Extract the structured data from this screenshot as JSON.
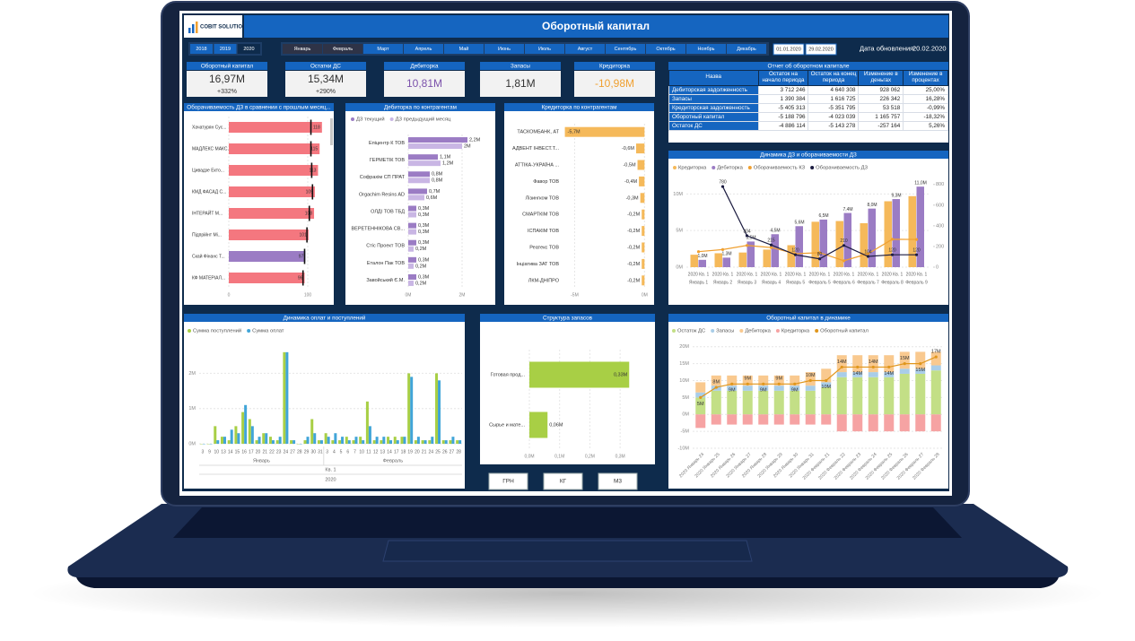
{
  "header": {
    "logo": "COBIT SOLUTIONS",
    "title": "Оборотный капитал"
  },
  "filters": {
    "years": [
      "2018",
      "2019",
      "2020"
    ],
    "months": [
      "Январь",
      "Февраль",
      "Март",
      "Апрель",
      "Май",
      "Июнь",
      "Июль",
      "Август",
      "Сентябрь",
      "Октябрь",
      "Ноябрь",
      "Декабрь"
    ],
    "selected": [
      "2020",
      "Январь",
      "Февраль"
    ],
    "dates": [
      "01.01.2020",
      "29.02.2020"
    ],
    "update_label": "Дата обновления:",
    "update_date": "20.02.2020"
  },
  "kpis": [
    {
      "label": "Оборотный капитал",
      "value": "16,97M",
      "delta": "+332%",
      "color": "#333333"
    },
    {
      "label": "Остатки ДС",
      "value": "15,34M",
      "delta": "+290%",
      "color": "#333333"
    },
    {
      "label": "Дебиторка",
      "value": "10,81M",
      "color": "#7b52ab"
    },
    {
      "label": "Запасы",
      "value": "1,81M",
      "color": "#333333"
    },
    {
      "label": "Кредиторка",
      "value": "-10,98M",
      "color": "#f0a030"
    }
  ],
  "report": {
    "title": "Отчет об оборотном капитале",
    "columns": [
      "Назва",
      "Остаток на начало периода",
      "Остаток на конец периода",
      "Изменение в деньгах",
      "Изменение в процентах"
    ],
    "rows": [
      [
        "Дебиторская задолженность",
        "3 712 246",
        "4 640 308",
        "928 062",
        "25,00%"
      ],
      [
        "Запасы",
        "1 390 384",
        "1 616 725",
        "226 342",
        "16,28%"
      ],
      [
        "Кредиторская задолженность",
        "-5 405 313",
        "-5 351 795",
        "53 518",
        "-0,99%"
      ],
      [
        "Оборотный капитал",
        "-5 188 796",
        "-4 023 039",
        "1 165 757",
        "-18,32%"
      ],
      [
        "Остаток ДС",
        "-4 886 114",
        "-5 143 278",
        "-257 164",
        "5,26%"
      ]
    ]
  },
  "charts": {
    "turnover": {
      "type": "hbar",
      "title": "Оборачиваемость ДЗ в сравнении с прошлым месяц...",
      "categories": [
        "Хачатурян Сус...",
        "МАДЛЕКС МАКС...",
        "Цивадзе Екто...",
        "КМД ФАСАД С...",
        "ІНТЕРАЙТ М...",
        "Підпрійнт Мі...",
        "Скай Фінанс Т...",
        "КФ МАТЕРІАЛ..."
      ],
      "values": [
        118,
        115,
        113,
        109,
        108,
        101,
        97,
        96
      ],
      "previous": [
        104,
        104,
        105,
        106,
        102,
        99,
        96,
        94
      ],
      "colors": [
        "#f4777f",
        "#f4777f",
        "#f4777f",
        "#f4777f",
        "#f4777f",
        "#f4777f",
        "#9b7cc4",
        "#f4777f"
      ],
      "xlim": [
        0,
        125
      ],
      "xticks": [
        0,
        100
      ]
    },
    "debitorka": {
      "type": "hbar",
      "title": "Дебиторка по контрагентам",
      "categories": [
        "Епіцентр К ТОВ",
        "ГЕРМЕТІК ТОВ",
        "Софрахім СП ПРАТ",
        "Orgachim Resins AD",
        "ОЛДІ ТОВ ТБД",
        "ВЕРЕТЕННІКОВА СВ...",
        "Стіс Проект ТОВ",
        "Еталон Пак ТОВ",
        "Завойський Є.М."
      ],
      "series": [
        {
          "name": "ДЗ текущий",
          "color": "#9b7cc4",
          "values": [
            2.2,
            1.1,
            0.8,
            0.7,
            0.3,
            0.3,
            0.3,
            0.3,
            0.3
          ],
          "value_labels": [
            "2,2M",
            "1,1M",
            "0,8M",
            "0,7M",
            "0,3M",
            "0,3M",
            "0,3M",
            "0,3M",
            "0,3M"
          ]
        },
        {
          "name": "ДЗ предыдущий месяц",
          "color": "#c9b6e4",
          "values": [
            2.0,
            1.2,
            0.8,
            0.6,
            0.3,
            0.3,
            0.2,
            0.2,
            0.2
          ],
          "value_labels": [
            "2M",
            "1,2M",
            "0,8M",
            "0,6M",
            "0,3M",
            "0,3M",
            "0,2M",
            "0,2M",
            "0,2M"
          ]
        }
      ],
      "xlim": [
        0,
        2.4
      ],
      "xticks": [
        {
          "value": 0,
          "label": "0M"
        },
        {
          "value": 2,
          "label": "2M"
        }
      ]
    },
    "kreditorka": {
      "type": "hbar",
      "title": "Кредиторка по контрагентам",
      "categories": [
        "ТАСКОМБАНК, АТ",
        "АДВЕНТ ІНВЕСТ.Т...",
        "АТТІКА-УКРАЇНА ...",
        "Фавор ТОВ",
        "Лізингком ТОВ",
        "СМАРТКІМ ТОВ",
        "ІСПАКІМ ТОВ",
        "Реатекс ТОВ",
        "Інціатива ЗАТ ТОВ",
        "ЛКМ-ДНІПРО"
      ],
      "values": [
        -5.7,
        -0.6,
        -0.5,
        -0.4,
        -0.3,
        -0.2,
        -0.2,
        -0.2,
        -0.2,
        -0.2
      ],
      "value_labels": [
        "-5,7M",
        "-0,6M",
        "-0,5M",
        "-0,4M",
        "-0,3M",
        "-0,2M",
        "-0,2M",
        "-0,2M",
        "-0,2M",
        "-0,2M"
      ],
      "color": "#f5b95a",
      "xlim": [
        -5.8,
        0.3
      ],
      "xticks": [
        {
          "value": -5,
          "label": "-5M"
        },
        {
          "value": 0,
          "label": "0M"
        }
      ]
    },
    "dz_dynamics": {
      "type": "combo",
      "title": "Динамика ДЗ и оборачиваемости ДЗ",
      "period": "2020 Кв. 1",
      "categories": [
        "Январь 1",
        "Январь 2",
        "Январь 3",
        "Январь 4",
        "Январь 5",
        "Февраль 5",
        "Февраль 6",
        "Февраль 7",
        "Февраль 8",
        "Февраль 9"
      ],
      "series": [
        {
          "name": "Кредиторка",
          "kind": "bar",
          "color": "#f5b95a",
          "values": [
            1.7,
            1.9,
            2.0,
            2.4,
            3.0,
            6.2,
            6.3,
            6.0,
            9.0,
            9.7
          ]
        },
        {
          "name": "Дебиторка",
          "kind": "bar",
          "color": "#9b7cc4",
          "values": [
            1.0,
            1.3,
            3.5,
            4.5,
            5.6,
            6.5,
            7.4,
            8.0,
            9.3,
            11.0
          ],
          "value_labels": [
            "1,0M",
            "1,3M",
            "3,5M",
            "4,5M",
            "5,6M",
            "6,5M",
            "7,4M",
            "8,0M",
            "9,3M",
            "11,0M"
          ]
        },
        {
          "name": "Оборачиваемость КЗ",
          "kind": "line",
          "axis": "y2",
          "color": "#f0a030",
          "values": [
            150,
            170,
            210,
            190,
            130,
            140,
            62,
            130,
            270,
            268
          ]
        },
        {
          "name": "Оборачиваемость ДЗ",
          "kind": "line",
          "axis": "y2",
          "color": "#1c1c40",
          "values": [
            null,
            780,
            304,
            215,
            120,
            80,
            210,
            104,
            120,
            120
          ],
          "print_values": true
        }
      ],
      "ylim": [
        0,
        12
      ],
      "yticks": [
        {
          "value": 0,
          "label": "0M"
        },
        {
          "value": 5,
          "label": "5M"
        },
        {
          "value": 10,
          "label": "10M"
        }
      ],
      "y2lim": [
        0,
        850
      ],
      "y2ticks": [
        0,
        200,
        400,
        600,
        800
      ]
    },
    "payments": {
      "type": "grouped_bar",
      "title": "Динамика оплат и поступлений",
      "categories": [
        "3",
        "9",
        "10",
        "13",
        "14",
        "15",
        "16",
        "17",
        "20",
        "21",
        "22",
        "23",
        "24",
        "27",
        "28",
        "29",
        "30",
        "31",
        "3",
        "4",
        "5",
        "6",
        "7",
        "10",
        "11",
        "12",
        "13",
        "14",
        "17",
        "18",
        "19",
        "20",
        "21",
        "24",
        "25",
        "26",
        "27",
        "28"
      ],
      "months": [
        "Январь",
        "Январь",
        "Январь",
        "Январь",
        "Январь",
        "Январь",
        "Январь",
        "Январь",
        "Январь",
        "Январь",
        "Январь",
        "Январь",
        "Январь",
        "Январь",
        "Январь",
        "Январь",
        "Январь",
        "Январь",
        "Февраль",
        "Февраль",
        "Февраль",
        "Февраль",
        "Февраль",
        "Февраль",
        "Февраль",
        "Февраль",
        "Февраль",
        "Февраль",
        "Февраль",
        "Февраль",
        "Февраль",
        "Февраль",
        "Февраль",
        "Февраль",
        "Февраль",
        "Февраль",
        "Февраль",
        "Февраль"
      ],
      "quarter": "Кв. 1",
      "year": "2020",
      "series": [
        {
          "name": "Сумма поступлений",
          "color": "#a8cf45",
          "values": [
            0.0,
            0.0,
            0.5,
            0.2,
            0.1,
            0.5,
            0.9,
            0.7,
            0.1,
            0.3,
            0.2,
            0.1,
            2.6,
            0.1,
            0.0,
            0.1,
            0.7,
            0.1,
            0.3,
            0.1,
            0.1,
            0.2,
            0.1,
            0.2,
            1.2,
            0.1,
            0.1,
            0.2,
            0.2,
            0.2,
            2.0,
            0.1,
            0.1,
            0.1,
            2.0,
            0.1,
            0.1,
            0.1
          ]
        },
        {
          "name": "Сумма оплат",
          "color": "#41a5d8",
          "values": [
            0.0,
            0.0,
            0.1,
            0.2,
            0.4,
            0.3,
            1.1,
            0.5,
            0.2,
            0.3,
            0.1,
            0.2,
            2.6,
            0.1,
            0.0,
            0.2,
            0.3,
            0.1,
            0.2,
            0.3,
            0.2,
            0.1,
            0.2,
            0.1,
            0.5,
            0.2,
            0.2,
            0.1,
            0.1,
            0.2,
            1.9,
            0.2,
            0.1,
            0.2,
            1.8,
            0.1,
            0.2,
            0.1
          ]
        }
      ],
      "ylim": [
        0,
        2.8
      ],
      "yticks": [
        {
          "value": 0,
          "label": "0M"
        },
        {
          "value": 1,
          "label": "1M"
        },
        {
          "value": 2,
          "label": "2M"
        }
      ]
    },
    "stock": {
      "type": "hbar",
      "title": "Структура запасов",
      "categories": [
        "Готовая прод...",
        "Сырье и мате..."
      ],
      "values": [
        0.33,
        0.06
      ],
      "value_labels": [
        "0,33M",
        "0,06M"
      ],
      "color": "#a8cf45",
      "xlim": [
        0,
        0.35
      ],
      "xticks": [
        {
          "value": 0,
          "label": "0,0M"
        },
        {
          "value": 0.1,
          "label": "0,1M"
        },
        {
          "value": 0.2,
          "label": "0,2M"
        },
        {
          "value": 0.3,
          "label": "0,3M"
        }
      ],
      "buttons": [
        "ГРН",
        "КГ",
        "М3"
      ]
    },
    "capital": {
      "type": "stacked_bar",
      "title": "Оборотный капитал в динамике",
      "categories": [
        "2020 Январь 24",
        "2020 Январь 25",
        "2020 Январь 26",
        "2020 Январь 27",
        "2020 Январь 28",
        "2020 Январь 29",
        "2020 Январь 30",
        "2020 Январь 31",
        "2020 Февраль 21",
        "2020 Февраль 22",
        "2020 Февраль 23",
        "2020 Февраль 24",
        "2020 Февраль 25",
        "2020 Февраль 26",
        "2020 Февраль 27",
        "2020 Февраль 28"
      ],
      "series": [
        {
          "name": "Остаток ДС",
          "kind": "bar",
          "color": "#c3df86",
          "values": [
            5,
            7,
            7,
            7,
            7,
            7,
            7,
            7,
            8,
            11,
            11,
            11,
            11,
            12,
            12,
            13
          ]
        },
        {
          "name": "Запасы",
          "kind": "bar",
          "color": "#a9cde8",
          "values": [
            1.5,
            1.5,
            1.5,
            1.5,
            1.5,
            1.5,
            1.5,
            1.5,
            1.5,
            1.5,
            1.5,
            1.5,
            1.5,
            1.5,
            1.5,
            1.5
          ]
        },
        {
          "name": "Дебиторка",
          "kind": "bar",
          "color": "#f9c98f",
          "values": [
            3,
            3,
            3,
            3,
            3,
            3,
            3,
            4,
            4,
            5,
            5,
            5,
            5,
            5,
            5,
            4
          ]
        },
        {
          "name": "Кредиторка",
          "kind": "bar",
          "color": "#f6a3a3",
          "values": [
            -4,
            -3,
            -3,
            -3,
            -3,
            -3,
            -3,
            -3,
            -3,
            -5,
            -5,
            -5,
            -5,
            -5,
            -5,
            -5
          ]
        },
        {
          "name": "Оборотный капитал",
          "kind": "line",
          "color": "#e0961c",
          "values": [
            5,
            8,
            9,
            9,
            9,
            9,
            9,
            10,
            10,
            14,
            14,
            14,
            14,
            15,
            15,
            17
          ],
          "value_labels": [
            "5M",
            "8M",
            "9M",
            "9M",
            "9M",
            "9M",
            "9M",
            "10M",
            "10M",
            "14M",
            "14M",
            "14M",
            "14M",
            "15M",
            "15M",
            "17M"
          ]
        }
      ],
      "ylim": [
        -10,
        21
      ],
      "yticks": [
        {
          "value": -10,
          "label": "-10M"
        },
        {
          "value": -5,
          "label": "-5M"
        },
        {
          "value": 0,
          "label": "0M"
        },
        {
          "value": 5,
          "label": "5M"
        },
        {
          "value": 10,
          "label": "10M"
        },
        {
          "value": 15,
          "label": "15M"
        },
        {
          "value": 20,
          "label": "20M"
        }
      ]
    }
  }
}
